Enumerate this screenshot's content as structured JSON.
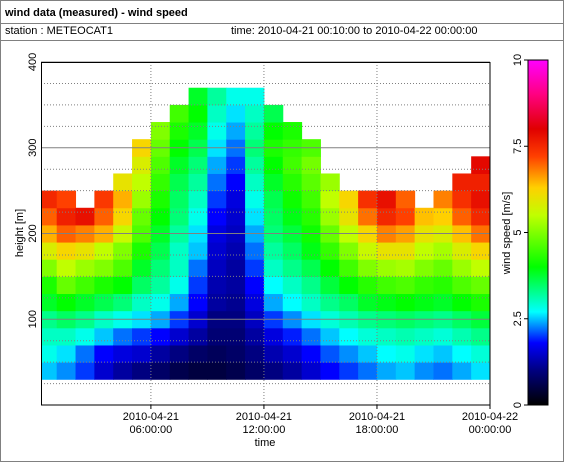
{
  "header": {
    "title": "wind data (measured) - wind speed",
    "station": "station : METEOCAT1",
    "time": "time: 2010-04-21 00:10:00 to 2010-04-22 00:00:00"
  },
  "chart_data": {
    "type": "heatmap",
    "x_label": "time",
    "y_label": "height [m]",
    "colorbar_label": "wind speed [m/s]",
    "xlim": [
      "2010-04-21 00:10:00",
      "2010-04-22 00:00:00"
    ],
    "xticks": [
      "2010-04-21 06:00:00",
      "2010-04-21 12:00:00",
      "2010-04-21 18:00:00",
      "2010-04-22 00:00:00"
    ],
    "ylim": [
      0,
      400
    ],
    "yticks": [
      100,
      200,
      300,
      400
    ],
    "yminorticks": [
      25,
      50,
      75,
      125,
      150,
      175,
      225,
      250,
      275,
      325,
      350,
      375
    ],
    "grid": true,
    "zlim": [
      0,
      10
    ],
    "zticks": [
      0,
      2.5,
      5,
      7.5,
      10
    ],
    "colorscale": [
      [
        0,
        "#000000"
      ],
      [
        1,
        "#000080"
      ],
      [
        1.8,
        "#0000ff"
      ],
      [
        2.7,
        "#00ffff"
      ],
      [
        4,
        "#00ff00"
      ],
      [
        5.5,
        "#c0ff00"
      ],
      [
        6.3,
        "#ffd000"
      ],
      [
        7.2,
        "#ff4000"
      ],
      [
        8,
        "#e00000"
      ],
      [
        9,
        "#ff0080"
      ],
      [
        10,
        "#ff00ff"
      ]
    ],
    "x": [
      "2010-04-21 00:30:00",
      "2010-04-21 01:30:00",
      "2010-04-21 02:30:00",
      "2010-04-21 03:30:00",
      "2010-04-21 04:30:00",
      "2010-04-21 05:30:00",
      "2010-04-21 06:30:00",
      "2010-04-21 07:30:00",
      "2010-04-21 08:30:00",
      "2010-04-21 09:30:00",
      "2010-04-21 10:30:00",
      "2010-04-21 11:30:00",
      "2010-04-21 12:30:00",
      "2010-04-21 13:30:00",
      "2010-04-21 14:30:00",
      "2010-04-21 15:30:00",
      "2010-04-21 16:30:00",
      "2010-04-21 17:30:00",
      "2010-04-21 18:30:00",
      "2010-04-21 19:30:00",
      "2010-04-21 20:30:00",
      "2010-04-21 21:30:00",
      "2010-04-21 22:30:00",
      "2010-04-21 23:30:00"
    ],
    "y": [
      40,
      60,
      80,
      100,
      120,
      140,
      160,
      180,
      200,
      220,
      240,
      260,
      280,
      300,
      320,
      340,
      360
    ],
    "values": [
      [
        2.5,
        2.8,
        3,
        3.3,
        3.8,
        4.2,
        5,
        5.8,
        6.5,
        7,
        7.5,
        null,
        null,
        null,
        null,
        null,
        null
      ],
      [
        2.3,
        2.6,
        3,
        3.5,
        4,
        4.8,
        5.5,
        6.2,
        7,
        7.6,
        7.2,
        null,
        null,
        null,
        null,
        null,
        null
      ],
      [
        2,
        2.2,
        2.8,
        3.3,
        3.8,
        4.5,
        5.2,
        6,
        6.8,
        7.8,
        null,
        null,
        null,
        null,
        null,
        null,
        null
      ],
      [
        1.5,
        1.8,
        2.5,
        3,
        3.6,
        4.2,
        5,
        5.5,
        6.5,
        7,
        7.3,
        null,
        null,
        null,
        null,
        null,
        null
      ],
      [
        1.2,
        1.6,
        2.2,
        2.8,
        3.4,
        4,
        4.6,
        5,
        5.6,
        6.2,
        6.5,
        6,
        null,
        null,
        null,
        null,
        null
      ],
      [
        1,
        1.5,
        2,
        2.6,
        3,
        3.5,
        3.8,
        4.2,
        4.6,
        4.8,
        5.2,
        5.5,
        5.8,
        6.2,
        null,
        null,
        null
      ],
      [
        0.8,
        1.2,
        1.8,
        2.4,
        2.8,
        3.2,
        3.4,
        3.6,
        3.8,
        4,
        4.2,
        4.4,
        4.6,
        4.8,
        5,
        null,
        null
      ],
      [
        0.6,
        1,
        1.5,
        2,
        2.4,
        2.8,
        3,
        3,
        3.2,
        3.4,
        3.5,
        3.6,
        3.8,
        4,
        4.2,
        4.5,
        null
      ],
      [
        0.5,
        0.8,
        1.2,
        1.5,
        1.8,
        2,
        2.2,
        2.5,
        2.6,
        2.8,
        3,
        3.2,
        3.4,
        3.6,
        3.8,
        4,
        3.8
      ],
      [
        0.5,
        0.7,
        0.9,
        1,
        1.2,
        1.3,
        1.4,
        1.5,
        1.6,
        1.8,
        2,
        2.2,
        2.4,
        2.6,
        2.8,
        3,
        3.2
      ],
      [
        0.6,
        0.8,
        0.9,
        1,
        1.1,
        1.2,
        1.2,
        1.3,
        1.4,
        1.5,
        1.6,
        1.8,
        2,
        2.2,
        2.4,
        2.6,
        2.8
      ],
      [
        0.8,
        1,
        1.2,
        1.4,
        1.6,
        1.8,
        2,
        2.2,
        2.4,
        2.6,
        2.8,
        3,
        3.2,
        3.4,
        3.2,
        3,
        2.8
      ],
      [
        1,
        1.3,
        1.6,
        2,
        2.4,
        2.7,
        3,
        3.2,
        3.4,
        3.5,
        3.6,
        3.8,
        4,
        4.2,
        4,
        3.6,
        null
      ],
      [
        1.2,
        1.5,
        1.9,
        2.3,
        2.7,
        3,
        3.3,
        3.5,
        3.7,
        3.9,
        4.1,
        4.3,
        4.5,
        4.4,
        4.2,
        null,
        null
      ],
      [
        1.5,
        1.8,
        2.2,
        2.6,
        3,
        3.3,
        3.6,
        3.9,
        4.1,
        4.3,
        4.5,
        4.7,
        4.9,
        4.6,
        null,
        null,
        null
      ],
      [
        1.8,
        2.1,
        2.5,
        2.9,
        3.3,
        3.7,
        4,
        4.4,
        4.8,
        5.2,
        5.5,
        5.2,
        null,
        null,
        null,
        null,
        null
      ],
      [
        2,
        2.3,
        2.7,
        3.1,
        3.5,
        4,
        4.5,
        5,
        5.5,
        6,
        6.2,
        null,
        null,
        null,
        null,
        null,
        null
      ],
      [
        2.2,
        2.5,
        2.9,
        3.3,
        3.8,
        4.3,
        5,
        5.6,
        6.2,
        6.9,
        7.4,
        null,
        null,
        null,
        null,
        null,
        null
      ],
      [
        2.4,
        2.7,
        3,
        3.4,
        3.9,
        4.5,
        5.2,
        6,
        6.8,
        7.5,
        7.8,
        null,
        null,
        null,
        null,
        null,
        null
      ],
      [
        2.5,
        2.8,
        3.1,
        3.5,
        4,
        4.6,
        5.3,
        6,
        6.6,
        7.2,
        7,
        null,
        null,
        null,
        null,
        null,
        null
      ],
      [
        2.3,
        2.6,
        3,
        3.4,
        3.9,
        4.4,
        5,
        5.5,
        6,
        6.4,
        null,
        null,
        null,
        null,
        null,
        null,
        null
      ],
      [
        2.2,
        2.5,
        2.9,
        3.3,
        3.8,
        4.3,
        4.8,
        5.3,
        5.8,
        6.3,
        6.8,
        null,
        null,
        null,
        null,
        null,
        null
      ],
      [
        2.4,
        2.7,
        3.1,
        3.5,
        4,
        4.6,
        5.2,
        5.8,
        6.4,
        7,
        7.4,
        7.6,
        null,
        null,
        null,
        null,
        null
      ],
      [
        2.6,
        2.9,
        3.3,
        3.7,
        4.2,
        4.8,
        5.5,
        6.2,
        6.9,
        7.5,
        7.8,
        7.6,
        7.9,
        null,
        null,
        null,
        null
      ]
    ]
  }
}
